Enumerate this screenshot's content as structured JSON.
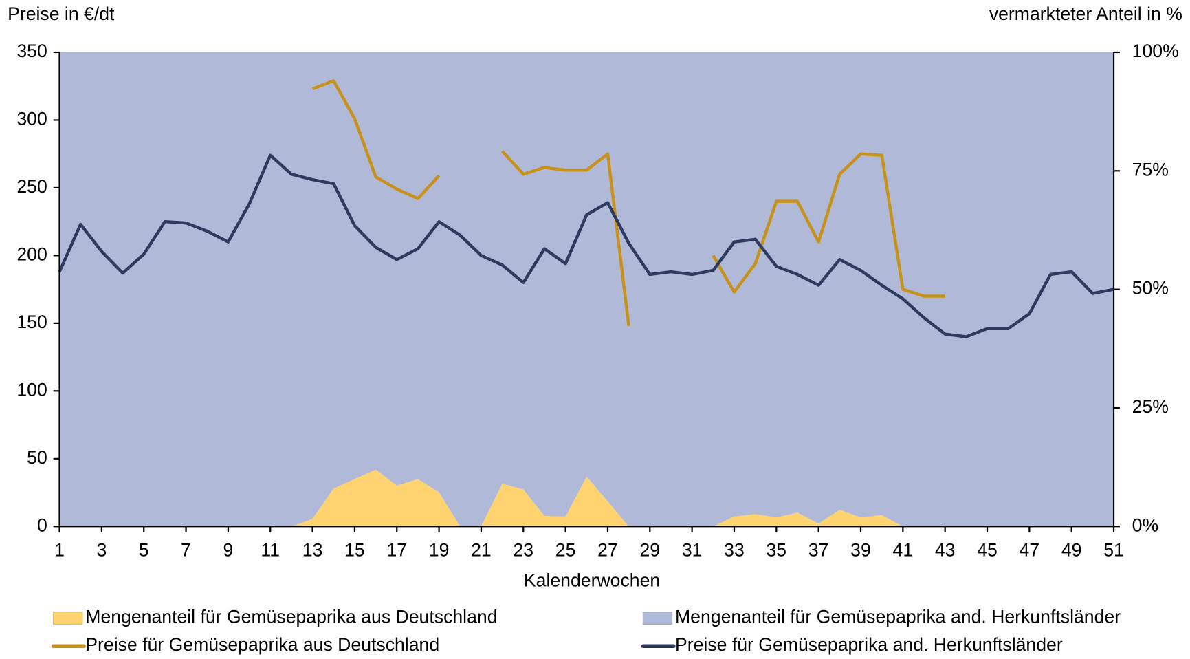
{
  "chart_data": {
    "type": "combo",
    "ylabel": "Preise in €/dt",
    "y2label": "vermarkteter Anteil in %",
    "xlabel": "Kalenderwochen",
    "x": [
      1,
      2,
      3,
      4,
      5,
      6,
      7,
      8,
      9,
      10,
      11,
      12,
      13,
      14,
      15,
      16,
      17,
      18,
      19,
      20,
      21,
      22,
      23,
      24,
      25,
      26,
      27,
      28,
      29,
      30,
      31,
      32,
      33,
      34,
      35,
      36,
      37,
      38,
      39,
      40,
      41,
      42,
      43,
      44,
      45,
      46,
      47,
      48,
      49,
      50,
      51
    ],
    "xlim": [
      1,
      51
    ],
    "xticks": [
      1,
      3,
      5,
      7,
      9,
      11,
      13,
      15,
      17,
      19,
      21,
      23,
      25,
      27,
      29,
      31,
      33,
      35,
      37,
      39,
      41,
      43,
      45,
      47,
      49,
      51
    ],
    "ylim": [
      0,
      350
    ],
    "yticks": [
      0,
      50,
      100,
      150,
      200,
      250,
      300,
      350
    ],
    "y2lim": [
      0,
      100
    ],
    "y2ticks": [
      {
        "value": 0,
        "label": "0%"
      },
      {
        "value": 25,
        "label": "25%"
      },
      {
        "value": 50,
        "label": "50%"
      },
      {
        "value": 75,
        "label": "75%"
      },
      {
        "value": 100,
        "label": "100%"
      }
    ],
    "series": [
      {
        "name": "Mengenanteil für Gemüsepaprika aus Deutschland",
        "kind": "area",
        "axis": "y2",
        "color": "#ffd470",
        "values": [
          0,
          0,
          0,
          0,
          0,
          0,
          0,
          0,
          0,
          0,
          0,
          0,
          1.6,
          8,
          10,
          12,
          8.6,
          10,
          7.2,
          0,
          0,
          9,
          7.8,
          2.2,
          2.1,
          10.5,
          5.3,
          0,
          0,
          0,
          0,
          0,
          2.1,
          2.6,
          1.9,
          2.9,
          0.6,
          3.5,
          1.9,
          2.4,
          0,
          0,
          0,
          0,
          0,
          0,
          0,
          0,
          0,
          0,
          0
        ]
      },
      {
        "name": "Mengenanteil für Gemüsepaprika and. Herkunftsländer",
        "kind": "area",
        "axis": "y2",
        "color": "#b0b9d7",
        "values": [
          100,
          100,
          100,
          100,
          100,
          100,
          100,
          100,
          100,
          100,
          100,
          100,
          98.4,
          92,
          90,
          88,
          91.4,
          90,
          92.8,
          100,
          100,
          91,
          92.2,
          97.8,
          97.9,
          89.5,
          94.7,
          100,
          100,
          100,
          100,
          100,
          97.9,
          97.4,
          98.1,
          97.1,
          99.4,
          96.5,
          98.1,
          97.6,
          100,
          100,
          100,
          100,
          100,
          100,
          100,
          100,
          100,
          100,
          100
        ]
      },
      {
        "name": "Preise für Gemüsepaprika aus Deutschland",
        "kind": "line",
        "color": "#c8921a",
        "values": [
          null,
          null,
          null,
          null,
          null,
          null,
          null,
          null,
          null,
          null,
          null,
          null,
          323,
          329,
          301,
          258,
          249,
          242,
          259,
          null,
          null,
          277,
          260,
          265,
          263,
          263,
          275,
          148,
          null,
          null,
          null,
          200,
          173,
          194,
          240,
          240,
          210,
          260,
          275,
          274,
          175,
          170,
          170,
          null,
          null,
          null,
          null,
          null,
          null,
          null,
          null
        ]
      },
      {
        "name": "Preise für Gemüsepaprika and. Herkunftsländer",
        "kind": "line",
        "color": "#2e3a5f",
        "values": [
          188,
          223,
          203,
          187,
          201,
          225,
          224,
          218,
          210,
          238,
          274,
          260,
          256,
          253,
          222,
          206,
          197,
          205,
          225,
          215,
          200,
          193,
          180,
          205,
          194,
          230,
          239,
          209,
          186,
          188,
          186,
          189,
          210,
          212,
          192,
          186,
          178,
          197,
          189,
          178,
          168,
          154,
          142,
          140,
          146,
          146,
          157,
          186,
          188,
          172,
          175
        ]
      }
    ]
  }
}
